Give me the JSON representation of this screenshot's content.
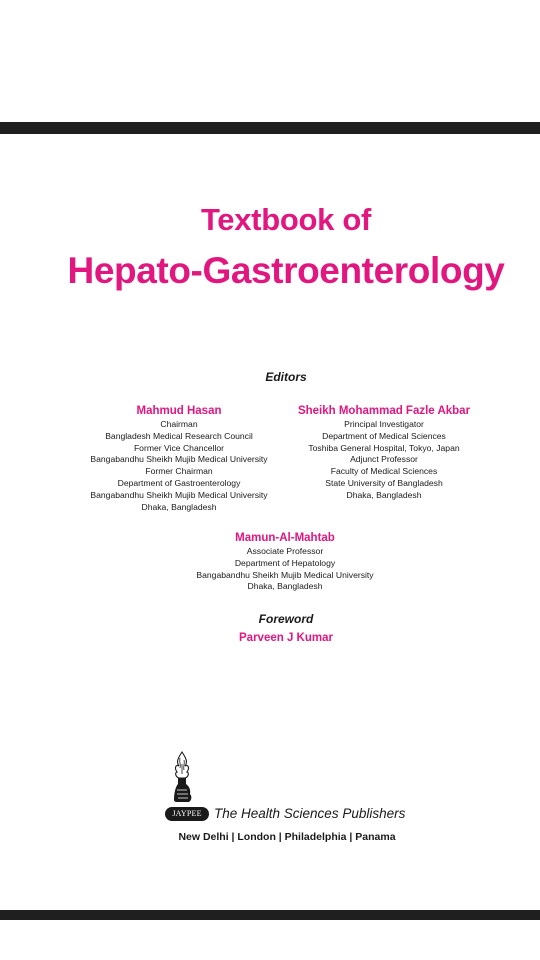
{
  "title": {
    "line1": "Textbook of",
    "line2": "Hepato-Gastroenterology"
  },
  "editors_heading": "Editors",
  "editors": [
    {
      "name": "Mahmud Hasan",
      "lines": [
        "Chairman",
        "Bangladesh Medical Research Council",
        "Former Vice Chancellor",
        "Bangabandhu Sheikh Mujib Medical University",
        "Former Chairman",
        "Department of Gastroenterology",
        "Bangabandhu Sheikh Mujib Medical University",
        "Dhaka, Bangladesh"
      ]
    },
    {
      "name": "Sheikh Mohammad Fazle Akbar",
      "lines": [
        "Principal Investigator",
        "Department of Medical Sciences",
        "Toshiba General Hospital, Tokyo, Japan",
        "Adjunct Professor",
        "Faculty of Medical Sciences",
        "State University of Bangladesh",
        "Dhaka, Bangladesh"
      ]
    },
    {
      "name": "Mamun-Al-Mahtab",
      "lines": [
        "Associate Professor",
        "Department of Hepatology",
        "Bangabandhu Sheikh Mujib Medical University",
        "Dhaka, Bangladesh"
      ]
    }
  ],
  "foreword": {
    "heading": "Foreword",
    "name": "Parveen J Kumar"
  },
  "publisher": {
    "badge": "JAYPEE",
    "tagline": "The Health Sciences Publishers",
    "cities": "New Delhi | London | Philadelphia | Panama",
    "logo_icon": "torch-hand-icon"
  },
  "colors": {
    "accent": "#e2167f",
    "text": "#1a1a1a",
    "bar": "#1f1f1f"
  }
}
